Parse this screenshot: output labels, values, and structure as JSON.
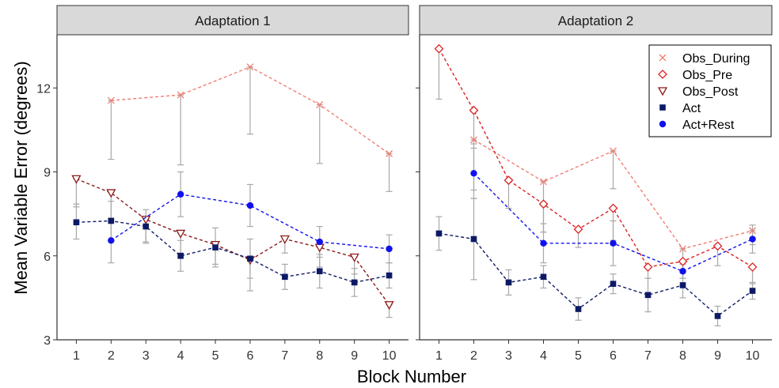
{
  "chart_data": {
    "type": "line",
    "xlabel": "Block Number",
    "ylabel": "Mean Variable Error (degrees)",
    "ylim": [
      3,
      13.9
    ],
    "yticks": [
      3,
      6,
      9,
      12
    ],
    "xticks": [
      1,
      2,
      3,
      4,
      5,
      6,
      7,
      8,
      9,
      10
    ],
    "legend_position": "top-right",
    "series_styles": [
      {
        "name": "Obs_During",
        "color": "#f07f73",
        "marker": "x"
      },
      {
        "name": "Obs_Pre",
        "color": "#dd2222",
        "marker": "diamond"
      },
      {
        "name": "Obs_Post",
        "color": "#8b1a1a",
        "marker": "triangle-down"
      },
      {
        "name": "Act",
        "color": "#0c1a66",
        "marker": "square"
      },
      {
        "name": "Act+Rest",
        "color": "#1111ee",
        "marker": "circle"
      }
    ],
    "panels": [
      {
        "title": "Adaptation 1",
        "series": [
          {
            "name": "Obs_During",
            "points": [
              {
                "x": 2,
                "y": 11.55,
                "lo": 9.45,
                "hi": 11.55
              },
              {
                "x": 4,
                "y": 11.75,
                "lo": 9.25,
                "hi": 11.75
              },
              {
                "x": 6,
                "y": 12.75,
                "lo": 10.35,
                "hi": 12.75
              },
              {
                "x": 8,
                "y": 11.4,
                "lo": 9.3,
                "hi": 11.4
              },
              {
                "x": 10,
                "y": 9.65,
                "lo": 8.3,
                "hi": 9.65
              }
            ]
          },
          {
            "name": "Obs_Post",
            "points": [
              {
                "x": 1,
                "y": 8.75,
                "lo": 7.75,
                "hi": 8.75
              },
              {
                "x": 2,
                "y": 8.25,
                "lo": 7.3,
                "hi": 8.25
              },
              {
                "x": 3,
                "y": 7.3,
                "lo": 6.5,
                "hi": 7.3
              },
              {
                "x": 4,
                "y": 6.8,
                "lo": 6.1,
                "hi": 6.8
              },
              {
                "x": 5,
                "y": 6.4,
                "lo": 5.7,
                "hi": 6.4
              },
              {
                "x": 6,
                "y": 5.85,
                "lo": 4.75,
                "hi": 5.85
              },
              {
                "x": 7,
                "y": 6.6,
                "lo": 6.1,
                "hi": 6.6
              },
              {
                "x": 8,
                "y": 6.3,
                "lo": 5.6,
                "hi": 6.3
              },
              {
                "x": 9,
                "y": 5.95,
                "lo": 5.35,
                "hi": 5.95
              },
              {
                "x": 10,
                "y": 4.25,
                "lo": 3.8,
                "hi": 4.25
              }
            ]
          },
          {
            "name": "Act",
            "points": [
              {
                "x": 1,
                "y": 7.2,
                "lo": 6.6,
                "hi": 7.85
              },
              {
                "x": 2,
                "y": 7.25,
                "lo": 6.55,
                "hi": 7.95
              },
              {
                "x": 3,
                "y": 7.05,
                "lo": 6.45,
                "hi": 7.65
              },
              {
                "x": 4,
                "y": 6.0,
                "lo": 5.45,
                "hi": 6.55
              },
              {
                "x": 5,
                "y": 6.3,
                "lo": 5.6,
                "hi": 7.0
              },
              {
                "x": 6,
                "y": 5.9,
                "lo": 5.2,
                "hi": 6.6
              },
              {
                "x": 7,
                "y": 5.25,
                "lo": 4.8,
                "hi": 5.7
              },
              {
                "x": 8,
                "y": 5.45,
                "lo": 4.85,
                "hi": 6.05
              },
              {
                "x": 9,
                "y": 5.05,
                "lo": 4.55,
                "hi": 5.55
              },
              {
                "x": 10,
                "y": 5.3,
                "lo": 4.85,
                "hi": 5.75
              }
            ]
          },
          {
            "name": "Act+Rest",
            "points": [
              {
                "x": 2,
                "y": 6.55,
                "lo": 5.75,
                "hi": 7.35
              },
              {
                "x": 4,
                "y": 8.2,
                "lo": 7.4,
                "hi": 9.0
              },
              {
                "x": 6,
                "y": 7.8,
                "lo": 7.05,
                "hi": 8.55
              },
              {
                "x": 8,
                "y": 6.5,
                "lo": 5.95,
                "hi": 7.05
              },
              {
                "x": 10,
                "y": 6.25,
                "lo": 5.75,
                "hi": 6.75
              }
            ]
          }
        ]
      },
      {
        "title": "Adaptation 2",
        "series": [
          {
            "name": "Obs_During",
            "points": [
              {
                "x": 2,
                "y": 10.15,
                "lo": 8.35,
                "hi": 10.15
              },
              {
                "x": 4,
                "y": 8.65,
                "lo": 6.85,
                "hi": 8.65
              },
              {
                "x": 6,
                "y": 9.75,
                "lo": 8.4,
                "hi": 9.75
              },
              {
                "x": 8,
                "y": 6.25,
                "lo": 5.5,
                "hi": 6.25
              },
              {
                "x": 10,
                "y": 6.9,
                "lo": 6.4,
                "hi": 6.9
              }
            ]
          },
          {
            "name": "Obs_Pre",
            "points": [
              {
                "x": 1,
                "y": 13.4,
                "lo": 11.6,
                "hi": 13.4
              },
              {
                "x": 2,
                "y": 11.2,
                "lo": 10.0,
                "hi": 11.2
              },
              {
                "x": 3,
                "y": 8.7,
                "lo": 7.7,
                "hi": 8.7
              },
              {
                "x": 4,
                "y": 7.85,
                "lo": 6.85,
                "hi": 7.85
              },
              {
                "x": 5,
                "y": 6.95,
                "lo": 6.3,
                "hi": 6.95
              },
              {
                "x": 6,
                "y": 7.7,
                "lo": 6.55,
                "hi": 7.7
              },
              {
                "x": 7,
                "y": 5.6,
                "lo": 5.2,
                "hi": 5.6
              },
              {
                "x": 8,
                "y": 5.8,
                "lo": 5.2,
                "hi": 5.8
              },
              {
                "x": 9,
                "y": 6.35,
                "lo": 5.65,
                "hi": 6.35
              },
              {
                "x": 10,
                "y": 5.6,
                "lo": 5.0,
                "hi": 5.6
              }
            ]
          },
          {
            "name": "Act",
            "points": [
              {
                "x": 1,
                "y": 6.8,
                "lo": 6.2,
                "hi": 7.4
              },
              {
                "x": 2,
                "y": 6.6,
                "lo": 5.15,
                "hi": 8.05
              },
              {
                "x": 3,
                "y": 5.05,
                "lo": 4.6,
                "hi": 5.5
              },
              {
                "x": 4,
                "y": 5.25,
                "lo": 4.85,
                "hi": 5.65
              },
              {
                "x": 5,
                "y": 4.1,
                "lo": 3.7,
                "hi": 4.5
              },
              {
                "x": 6,
                "y": 5.0,
                "lo": 4.65,
                "hi": 5.35
              },
              {
                "x": 7,
                "y": 4.6,
                "lo": 4.0,
                "hi": 5.2
              },
              {
                "x": 8,
                "y": 4.95,
                "lo": 4.5,
                "hi": 5.4
              },
              {
                "x": 9,
                "y": 3.85,
                "lo": 3.5,
                "hi": 4.2
              },
              {
                "x": 10,
                "y": 4.75,
                "lo": 4.45,
                "hi": 5.05
              }
            ]
          },
          {
            "name": "Act+Rest",
            "points": [
              {
                "x": 2,
                "y": 8.95,
                "lo": 8.05,
                "hi": 9.85
              },
              {
                "x": 4,
                "y": 6.45,
                "lo": 5.75,
                "hi": 7.15
              },
              {
                "x": 6,
                "y": 6.45,
                "lo": 5.65,
                "hi": 7.25
              },
              {
                "x": 8,
                "y": 5.45,
                "lo": 5.2,
                "hi": 5.7
              },
              {
                "x": 10,
                "y": 6.6,
                "lo": 6.1,
                "hi": 7.1
              }
            ]
          }
        ]
      }
    ]
  }
}
